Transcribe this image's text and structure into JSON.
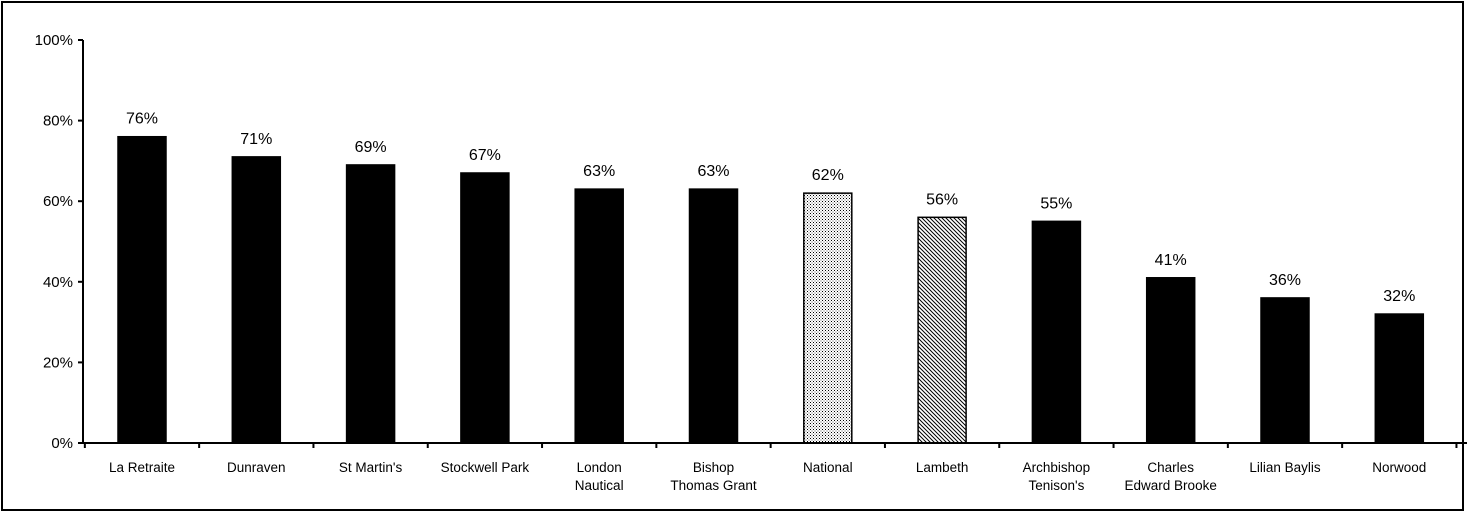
{
  "chart_data": {
    "type": "bar",
    "title": "",
    "xlabel": "",
    "ylabel": "",
    "ylim": [
      0,
      100
    ],
    "y_ticks": [
      "0%",
      "20%",
      "40%",
      "60%",
      "80%",
      "100%"
    ],
    "y_tick_values": [
      0,
      20,
      40,
      60,
      80,
      100
    ],
    "grid": false,
    "legend": "none",
    "categories": [
      [
        "La Retraite"
      ],
      [
        "Dunraven"
      ],
      [
        "St Martin's"
      ],
      [
        "Stockwell Park"
      ],
      [
        "London",
        "Nautical"
      ],
      [
        "Bishop",
        "Thomas Grant"
      ],
      [
        "National"
      ],
      [
        "Lambeth"
      ],
      [
        "Archbishop",
        "Tenison's"
      ],
      [
        "Charles",
        "Edward Brooke"
      ],
      [
        "Lilian Baylis"
      ],
      [
        "Norwood"
      ]
    ],
    "values": [
      76,
      71,
      69,
      67,
      63,
      63,
      62,
      56,
      55,
      41,
      36,
      32
    ],
    "value_labels": [
      "76%",
      "71%",
      "69%",
      "67%",
      "63%",
      "63%",
      "62%",
      "56%",
      "55%",
      "41%",
      "36%",
      "32%"
    ],
    "bar_fills": [
      "solid",
      "solid",
      "solid",
      "solid",
      "solid",
      "solid",
      "dotted",
      "hatched",
      "solid",
      "solid",
      "solid",
      "solid"
    ],
    "colors": {
      "bar": "#000000",
      "background": "#ffffff",
      "axis": "#000000"
    }
  }
}
